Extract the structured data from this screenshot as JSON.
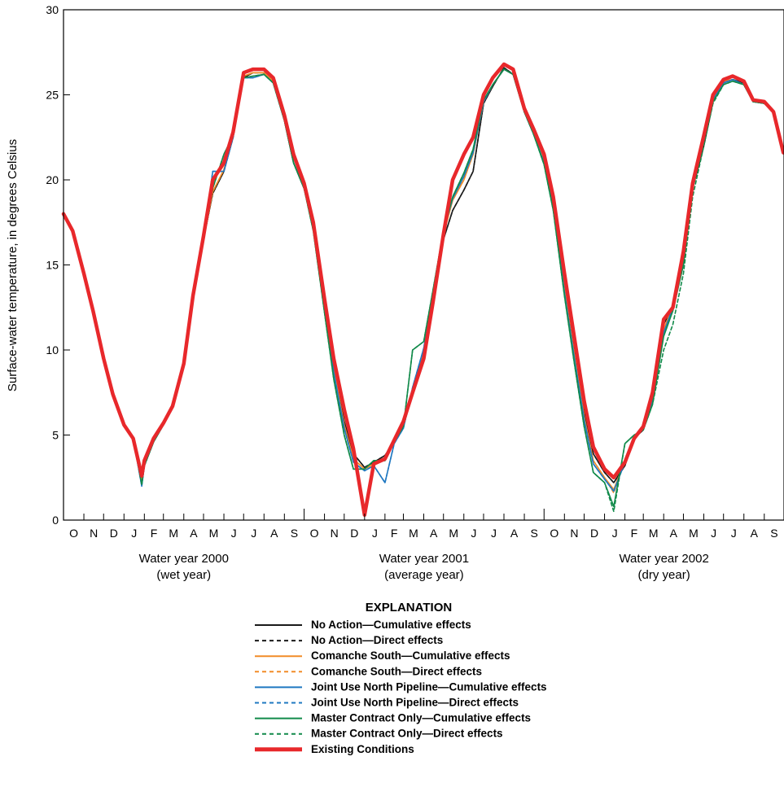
{
  "chart_data": {
    "type": "line",
    "ylabel": "Surface-water temperature, in degrees Celsius",
    "ylim": [
      0,
      30
    ],
    "yticks": [
      "0",
      "5",
      "10",
      "15",
      "20",
      "25",
      "30"
    ],
    "xlim": [
      "1999-10-01",
      "2002-09-30"
    ],
    "month_labels": [
      "O",
      "N",
      "D",
      "J",
      "F",
      "M",
      "A",
      "M",
      "J",
      "J",
      "A",
      "S",
      "O",
      "N",
      "D",
      "J",
      "F",
      "M",
      "A",
      "M",
      "J",
      "J",
      "A",
      "S",
      "O",
      "N",
      "D",
      "J",
      "F",
      "M",
      "A",
      "M",
      "J",
      "J",
      "A",
      "S"
    ],
    "water_years": [
      {
        "label": "Water year 2000",
        "sublabel": "(wet year)"
      },
      {
        "label": "Water year 2001",
        "sublabel": "(average year)"
      },
      {
        "label": "Water year 2002",
        "sublabel": "(dry year)"
      }
    ],
    "x": [
      "1999-10-01",
      "1999-10-15",
      "1999-11-01",
      "1999-11-15",
      "1999-12-01",
      "1999-12-15",
      "2000-01-01",
      "2000-01-15",
      "2000-01-28",
      "2000-02-01",
      "2000-02-15",
      "2000-03-01",
      "2000-03-15",
      "2000-04-01",
      "2000-04-15",
      "2000-05-01",
      "2000-05-15",
      "2000-06-01",
      "2000-06-15",
      "2000-07-01",
      "2000-07-15",
      "2000-08-01",
      "2000-08-15",
      "2000-09-01",
      "2000-09-15",
      "2000-10-01",
      "2000-10-15",
      "2000-11-01",
      "2000-11-15",
      "2000-12-01",
      "2000-12-15",
      "2001-01-01",
      "2001-01-15",
      "2001-02-01",
      "2001-02-15",
      "2001-03-01",
      "2001-03-15",
      "2001-04-01",
      "2001-04-15",
      "2001-05-01",
      "2001-05-15",
      "2001-06-01",
      "2001-06-15",
      "2001-07-01",
      "2001-07-15",
      "2001-08-01",
      "2001-08-15",
      "2001-09-01",
      "2001-09-15",
      "2001-10-01",
      "2001-10-15",
      "2001-11-01",
      "2001-11-15",
      "2001-12-01",
      "2001-12-15",
      "2002-01-01",
      "2002-01-15",
      "2002-02-01",
      "2002-02-15",
      "2002-03-01",
      "2002-03-15",
      "2002-04-01",
      "2002-04-15",
      "2002-05-01",
      "2002-05-15",
      "2002-06-01",
      "2002-06-15",
      "2002-07-01",
      "2002-07-15",
      "2002-08-01",
      "2002-08-15",
      "2002-09-01",
      "2002-09-15",
      "2002-09-30"
    ],
    "series": [
      {
        "name": "No Action",
        "effect": "Cumulative effects",
        "color": "#1a1a1a",
        "dash": "solid",
        "values": [
          18.0,
          17.0,
          14.5,
          12.3,
          9.5,
          7.4,
          5.6,
          4.8,
          2.1,
          3.2,
          4.6,
          5.6,
          6.6,
          9.0,
          13.0,
          16.5,
          19.2,
          20.5,
          22.5,
          26.0,
          26.3,
          26.3,
          25.8,
          23.5,
          21.0,
          19.5,
          17.3,
          12.6,
          9.0,
          5.8,
          3.9,
          3.1,
          3.4,
          3.8,
          4.6,
          5.5,
          7.5,
          9.8,
          13.0,
          16.5,
          18.2,
          19.4,
          20.5,
          24.5,
          25.5,
          26.6,
          26.2,
          24.0,
          22.8,
          21.2,
          18.6,
          13.8,
          10.2,
          6.3,
          3.9,
          2.8,
          2.2,
          3.2,
          4.8,
          5.3,
          7.2,
          11.5,
          12.6,
          15.5,
          19.5,
          22.0,
          24.6,
          25.7,
          25.9,
          25.7,
          24.6,
          24.5,
          24.0,
          21.6
        ]
      },
      {
        "name": "No Action",
        "effect": "Direct effects",
        "color": "#1a1a1a",
        "dash": "dashed",
        "values": [
          18.0,
          17.0,
          14.5,
          12.3,
          9.5,
          7.4,
          5.6,
          4.8,
          2.1,
          3.2,
          4.6,
          5.6,
          6.6,
          9.0,
          13.0,
          16.5,
          19.2,
          20.5,
          22.5,
          26.0,
          26.3,
          26.3,
          25.8,
          23.5,
          21.0,
          19.5,
          17.3,
          12.6,
          9.0,
          5.8,
          3.9,
          3.1,
          3.4,
          3.8,
          4.6,
          5.5,
          7.5,
          9.8,
          13.0,
          16.5,
          18.2,
          19.4,
          20.5,
          24.5,
          25.5,
          26.6,
          26.2,
          24.0,
          22.8,
          21.2,
          18.6,
          13.8,
          10.2,
          6.3,
          3.9,
          2.8,
          2.2,
          3.2,
          4.8,
          5.3,
          7.2,
          11.5,
          12.6,
          15.5,
          19.5,
          22.0,
          24.6,
          25.7,
          25.9,
          25.7,
          24.6,
          24.5,
          24.0,
          21.6
        ]
      },
      {
        "name": "Comanche South",
        "effect": "Cumulative effects",
        "color": "#f28c28",
        "dash": "solid",
        "values": [
          18.0,
          17.0,
          14.5,
          12.3,
          9.5,
          7.4,
          5.6,
          4.8,
          2.3,
          3.2,
          4.6,
          5.6,
          6.6,
          9.0,
          13.0,
          16.5,
          19.3,
          20.6,
          22.6,
          26.1,
          26.3,
          26.3,
          25.8,
          23.5,
          21.0,
          19.5,
          17.2,
          12.5,
          8.9,
          5.6,
          3.6,
          3.0,
          3.3,
          3.6,
          4.6,
          5.5,
          7.7,
          10.0,
          13.2,
          16.8,
          18.8,
          20.0,
          21.5,
          24.6,
          25.6,
          26.5,
          26.2,
          24.0,
          22.8,
          21.1,
          18.5,
          13.6,
          10.0,
          6.1,
          3.5,
          2.5,
          1.8,
          3.5,
          4.9,
          5.4,
          7.1,
          11.2,
          12.6,
          15.3,
          19.8,
          22.4,
          24.8,
          25.8,
          25.9,
          25.6,
          24.6,
          24.5,
          24.0,
          21.6
        ]
      },
      {
        "name": "Comanche South",
        "effect": "Direct effects",
        "color": "#f28c28",
        "dash": "dashed",
        "values": [
          18.0,
          17.0,
          14.5,
          12.3,
          9.5,
          7.4,
          5.6,
          4.8,
          2.3,
          3.2,
          4.6,
          5.6,
          6.6,
          9.0,
          13.0,
          16.5,
          19.3,
          20.6,
          22.6,
          26.1,
          26.3,
          26.3,
          25.8,
          23.5,
          21.0,
          19.5,
          17.2,
          12.5,
          8.9,
          5.6,
          3.6,
          3.0,
          3.3,
          3.6,
          4.6,
          5.5,
          7.7,
          10.0,
          13.2,
          16.8,
          18.8,
          20.0,
          21.5,
          24.6,
          25.6,
          26.5,
          26.2,
          24.0,
          22.8,
          21.1,
          18.5,
          13.6,
          10.0,
          6.1,
          3.5,
          2.5,
          1.6,
          3.5,
          4.9,
          5.4,
          7.1,
          11.2,
          12.6,
          15.3,
          19.8,
          22.4,
          24.8,
          25.8,
          25.9,
          25.6,
          24.6,
          24.5,
          24.0,
          21.6
        ]
      },
      {
        "name": "Joint Use North Pipeline",
        "effect": "Cumulative effects",
        "color": "#1f78c1",
        "dash": "solid",
        "values": [
          18.0,
          17.0,
          14.5,
          12.3,
          9.5,
          7.4,
          5.6,
          4.8,
          2.0,
          3.2,
          4.6,
          5.6,
          6.6,
          9.0,
          13.0,
          16.5,
          20.5,
          20.5,
          22.5,
          26.0,
          26.0,
          26.2,
          25.7,
          23.5,
          21.0,
          19.5,
          17.2,
          12.4,
          8.7,
          5.4,
          3.4,
          2.9,
          3.2,
          2.2,
          4.5,
          5.4,
          7.8,
          10.1,
          13.3,
          17.0,
          18.9,
          20.2,
          21.6,
          24.6,
          25.6,
          26.5,
          26.2,
          24.0,
          22.7,
          21.0,
          18.3,
          13.4,
          9.8,
          5.9,
          3.3,
          2.4,
          1.7,
          3.4,
          4.8,
          5.4,
          7.0,
          11.0,
          12.5,
          15.2,
          19.7,
          22.3,
          24.7,
          25.7,
          25.9,
          25.6,
          24.6,
          24.5,
          24.0,
          21.6
        ]
      },
      {
        "name": "Joint Use North Pipeline",
        "effect": "Direct effects",
        "color": "#1f78c1",
        "dash": "dashed",
        "values": [
          18.0,
          17.0,
          14.5,
          12.3,
          9.5,
          7.4,
          5.6,
          4.8,
          2.0,
          3.2,
          4.6,
          5.6,
          6.6,
          9.0,
          13.0,
          16.5,
          20.5,
          20.5,
          22.5,
          26.0,
          26.0,
          26.2,
          25.7,
          23.5,
          21.0,
          19.5,
          17.2,
          12.4,
          8.7,
          5.4,
          3.4,
          2.9,
          3.2,
          2.2,
          4.5,
          5.4,
          7.8,
          10.1,
          13.3,
          17.0,
          18.9,
          20.2,
          21.6,
          24.6,
          25.6,
          26.5,
          26.2,
          24.0,
          22.7,
          21.0,
          18.3,
          13.4,
          9.8,
          5.9,
          3.3,
          2.4,
          1.7,
          3.4,
          4.8,
          5.4,
          7.0,
          11.0,
          12.5,
          15.2,
          19.7,
          22.3,
          24.7,
          25.7,
          25.9,
          25.6,
          24.6,
          24.5,
          24.0,
          21.6
        ]
      },
      {
        "name": "Master Contract Only",
        "effect": "Cumulative effects",
        "color": "#118a4a",
        "dash": "solid",
        "values": [
          18.0,
          17.0,
          14.5,
          12.3,
          9.5,
          7.4,
          5.6,
          4.8,
          2.1,
          3.2,
          4.6,
          5.6,
          6.6,
          9.0,
          13.0,
          16.5,
          19.5,
          21.5,
          22.6,
          26.0,
          26.1,
          26.2,
          25.7,
          23.5,
          21.0,
          19.5,
          17.0,
          12.2,
          8.3,
          5.0,
          3.0,
          3.0,
          3.5,
          3.5,
          4.6,
          5.5,
          10.0,
          10.5,
          13.5,
          17.0,
          19.0,
          20.4,
          21.8,
          24.7,
          25.6,
          26.5,
          26.2,
          24.0,
          22.7,
          20.9,
          18.2,
          13.2,
          9.5,
          5.5,
          2.8,
          2.2,
          0.8,
          4.5,
          5.0,
          5.3,
          6.8,
          10.8,
          12.3,
          15.0,
          19.5,
          22.2,
          24.6,
          25.6,
          25.8,
          25.6,
          24.6,
          24.5,
          24.0,
          21.6
        ]
      },
      {
        "name": "Master Contract Only",
        "effect": "Direct effects",
        "color": "#118a4a",
        "dash": "dashed",
        "values": [
          18.0,
          17.0,
          14.5,
          12.3,
          9.5,
          7.4,
          5.6,
          4.8,
          2.1,
          3.2,
          4.6,
          5.6,
          6.6,
          9.0,
          13.0,
          16.5,
          19.5,
          21.5,
          22.6,
          26.0,
          26.1,
          26.2,
          25.7,
          23.5,
          21.0,
          19.5,
          17.0,
          12.2,
          8.3,
          5.0,
          3.0,
          3.0,
          3.5,
          3.5,
          4.6,
          5.5,
          10.0,
          10.5,
          13.5,
          17.0,
          19.0,
          20.4,
          21.8,
          24.7,
          25.6,
          26.5,
          26.2,
          24.0,
          22.7,
          20.9,
          18.2,
          13.2,
          9.5,
          5.5,
          2.8,
          2.2,
          0.5,
          4.5,
          5.0,
          5.3,
          6.8,
          10.0,
          11.5,
          14.5,
          19.0,
          22.0,
          24.5,
          25.6,
          25.8,
          25.6,
          24.6,
          24.5,
          24.0,
          21.6
        ]
      },
      {
        "name": "Existing Conditions",
        "effect": "",
        "color": "#e8282b",
        "dash": "solid",
        "values": [
          18.0,
          17.0,
          14.5,
          12.3,
          9.5,
          7.4,
          5.6,
          4.8,
          2.6,
          3.5,
          4.8,
          5.7,
          6.7,
          9.2,
          13.2,
          16.7,
          20.0,
          21.0,
          22.8,
          26.3,
          26.5,
          26.5,
          26.0,
          23.8,
          21.5,
          19.8,
          17.5,
          13.0,
          9.5,
          6.5,
          4.2,
          0.3,
          3.3,
          3.6,
          4.7,
          5.8,
          7.5,
          9.5,
          12.8,
          16.8,
          20.0,
          21.5,
          22.5,
          25.0,
          26.0,
          26.8,
          26.5,
          24.2,
          23.0,
          21.5,
          19.0,
          14.5,
          11.0,
          7.0,
          4.3,
          3.0,
          2.5,
          3.4,
          4.8,
          5.5,
          7.5,
          11.8,
          12.5,
          15.8,
          19.8,
          22.6,
          25.0,
          25.9,
          26.1,
          25.8,
          24.7,
          24.6,
          24.0,
          21.6
        ]
      }
    ]
  },
  "legend": {
    "title": "EXPLANATION",
    "entries": [
      {
        "name": "No Action",
        "desc": "—Cumulative effects",
        "color": "#1a1a1a",
        "dash": "solid"
      },
      {
        "name": "No Action",
        "desc": "—Direct effects",
        "color": "#1a1a1a",
        "dash": "dashed"
      },
      {
        "name": "Comanche South",
        "desc": "—Cumulative effects",
        "color": "#f28c28",
        "dash": "solid"
      },
      {
        "name": "Comanche South",
        "desc": "—Direct effects",
        "color": "#f28c28",
        "dash": "dashed"
      },
      {
        "name": "Joint Use North Pipeline",
        "desc": "—Cumulative effects",
        "color": "#1f78c1",
        "dash": "solid"
      },
      {
        "name": "Joint Use North Pipeline",
        "desc": "—Direct effects",
        "color": "#1f78c1",
        "dash": "dashed"
      },
      {
        "name": "Master Contract Only",
        "desc": "—Cumulative effects",
        "color": "#118a4a",
        "dash": "solid"
      },
      {
        "name": "Master Contract Only",
        "desc": "—Direct effects",
        "color": "#118a4a",
        "dash": "dashed"
      },
      {
        "name": "Existing Conditions",
        "desc": "",
        "color": "#e8282b",
        "dash": "thick"
      }
    ]
  }
}
